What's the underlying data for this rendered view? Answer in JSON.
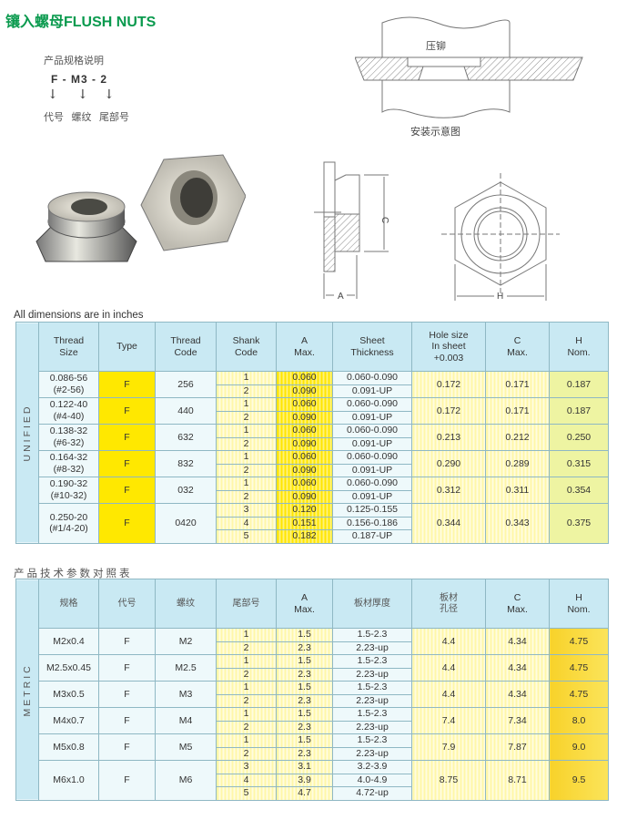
{
  "title": "镶入螺母FLUSH NUTS",
  "spec": {
    "heading": "产品规格说明",
    "code": "F - M3 - 2",
    "labels": [
      "代号",
      "螺纹",
      "尾部号"
    ]
  },
  "diagram": {
    "press_label": "压铆",
    "install_caption": "安装示意图",
    "dim_a": "A",
    "dim_c": "C",
    "dim_h": "H"
  },
  "unified": {
    "note": "All dimensions are in inches",
    "side_label": "UNIFIED",
    "headers": [
      "Thread Size",
      "Type",
      "Thread Code",
      "Shank Code",
      "A Max.",
      "Sheet Thickness",
      "Hole size In sheet +0.003",
      "C Max.",
      "H Nom."
    ],
    "groups": [
      {
        "size": "0.086-56 (#2-56)",
        "type": "F",
        "code": "256",
        "rows": [
          [
            "1",
            "0.060",
            "0.060-0.090"
          ],
          [
            "2",
            "0.090",
            "0.091-UP"
          ]
        ],
        "hole": "0.172",
        "c": "0.171",
        "h": "0.187"
      },
      {
        "size": "0.122-40 (#4-40)",
        "type": "F",
        "code": "440",
        "rows": [
          [
            "1",
            "0.060",
            "0.060-0.090"
          ],
          [
            "2",
            "0.090",
            "0.091-UP"
          ]
        ],
        "hole": "0.172",
        "c": "0.171",
        "h": "0.187"
      },
      {
        "size": "0.138-32 (#6-32)",
        "type": "F",
        "code": "632",
        "rows": [
          [
            "1",
            "0.060",
            "0.060-0.090"
          ],
          [
            "2",
            "0.090",
            "0.091-UP"
          ]
        ],
        "hole": "0.213",
        "c": "0.212",
        "h": "0.250"
      },
      {
        "size": "0.164-32 (#8-32)",
        "type": "F",
        "code": "832",
        "rows": [
          [
            "1",
            "0.060",
            "0.060-0.090"
          ],
          [
            "2",
            "0.090",
            "0.091-UP"
          ]
        ],
        "hole": "0.290",
        "c": "0.289",
        "h": "0.315"
      },
      {
        "size": "0.190-32 (#10-32)",
        "type": "F",
        "code": "032",
        "rows": [
          [
            "1",
            "0.060",
            "0.060-0.090"
          ],
          [
            "2",
            "0.090",
            "0.091-UP"
          ]
        ],
        "hole": "0.312",
        "c": "0.311",
        "h": "0.354"
      },
      {
        "size": "0.250-20 (#1/4-20)",
        "type": "F",
        "code": "0420",
        "rows": [
          [
            "3",
            "0.120",
            "0.125-0.155"
          ],
          [
            "4",
            "0.151",
            "0.156-0.186"
          ],
          [
            "5",
            "0.182",
            "0.187-UP"
          ]
        ],
        "hole": "0.344",
        "c": "0.343",
        "h": "0.375"
      }
    ]
  },
  "metric": {
    "caption": "产品技术参数对照表",
    "side_label": "METRIC",
    "headers": [
      "规格",
      "代号",
      "螺纹",
      "尾部号",
      "A Max.",
      "板材厚度",
      "板材 孔径",
      "C Max.",
      "H Nom."
    ],
    "groups": [
      {
        "size": "M2x0.4",
        "type": "F",
        "code": "M2",
        "rows": [
          [
            "1",
            "1.5",
            "1.5-2.3"
          ],
          [
            "2",
            "2.3",
            "2.23-up"
          ]
        ],
        "hole": "4.4",
        "c": "4.34",
        "h": "4.75"
      },
      {
        "size": "M2.5x0.45",
        "type": "F",
        "code": "M2.5",
        "rows": [
          [
            "1",
            "1.5",
            "1.5-2.3"
          ],
          [
            "2",
            "2.3",
            "2.23-up"
          ]
        ],
        "hole": "4.4",
        "c": "4.34",
        "h": "4.75"
      },
      {
        "size": "M3x0.5",
        "type": "F",
        "code": "M3",
        "rows": [
          [
            "1",
            "1.5",
            "1.5-2.3"
          ],
          [
            "2",
            "2.3",
            "2.23-up"
          ]
        ],
        "hole": "4.4",
        "c": "4.34",
        "h": "4.75"
      },
      {
        "size": "M4x0.7",
        "type": "F",
        "code": "M4",
        "rows": [
          [
            "1",
            "1.5",
            "1.5-2.3"
          ],
          [
            "2",
            "2.3",
            "2.23-up"
          ]
        ],
        "hole": "7.4",
        "c": "7.34",
        "h": "8.0"
      },
      {
        "size": "M5x0.8",
        "type": "F",
        "code": "M5",
        "rows": [
          [
            "1",
            "1.5",
            "1.5-2.3"
          ],
          [
            "2",
            "2.3",
            "2.23-up"
          ]
        ],
        "hole": "7.9",
        "c": "7.87",
        "h": "9.0"
      },
      {
        "size": "M6x1.0",
        "type": "F",
        "code": "M6",
        "rows": [
          [
            "3",
            "3.1",
            "3.2-3.9"
          ],
          [
            "4",
            "3.9",
            "4.0-4.9"
          ],
          [
            "5",
            "4.7",
            "4.72-up"
          ]
        ],
        "hole": "8.75",
        "c": "8.71",
        "h": "9.5"
      }
    ]
  }
}
